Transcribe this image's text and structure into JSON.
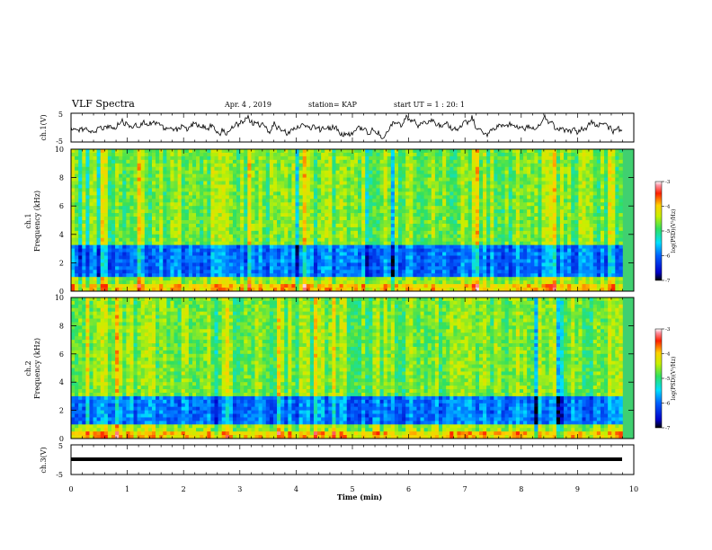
{
  "header": {
    "title": "VLF Spectra",
    "date": "Apr. 4 , 2019",
    "station": "station= KAP",
    "start": "start UT = 1 : 20: 1"
  },
  "chart_data": [
    {
      "type": "line",
      "panel": "waveform-ch1",
      "ylabel": "ch.1(V)",
      "ylim": [
        -5,
        5
      ],
      "yticks": [
        "5",
        "-5"
      ],
      "xlim": [
        0,
        10
      ],
      "duration_min": 9.8
    },
    {
      "type": "heatmap",
      "panel": "spectrogram-ch1",
      "ylabel": "ch.1\nFrequency (kHz)",
      "ylim": [
        0,
        10
      ],
      "yticks": [
        "0",
        "2",
        "4",
        "6",
        "8",
        "10"
      ],
      "colorbar": {
        "label": "log(PSD)(V²/Hz)",
        "range": [
          -7,
          -3
        ],
        "ticks": [
          "-3",
          "-4",
          "-5",
          "-6",
          "-7"
        ]
      }
    },
    {
      "type": "heatmap",
      "panel": "spectrogram-ch2",
      "ylabel": "ch.2\nFrequency (kHz)",
      "ylim": [
        0,
        10
      ],
      "yticks": [
        "0",
        "2",
        "4",
        "6",
        "8",
        "10"
      ],
      "colorbar": {
        "label": "log(PSD)(V²/Hz)",
        "range": [
          -7,
          -3
        ],
        "ticks": [
          "-3",
          "-4",
          "-5",
          "-6",
          "-7"
        ]
      }
    },
    {
      "type": "line",
      "panel": "waveform-ch3",
      "ylabel": "ch.3(V)",
      "ylim": [
        -5,
        5
      ],
      "yticks": [
        "5",
        "-5"
      ],
      "values_const": -1
    }
  ],
  "xaxis": {
    "xlabel": "Time (min)",
    "xlim": [
      0,
      10
    ],
    "ticks": [
      "0",
      "1",
      "2",
      "3",
      "4",
      "5",
      "6",
      "7",
      "8",
      "9",
      "10"
    ]
  }
}
